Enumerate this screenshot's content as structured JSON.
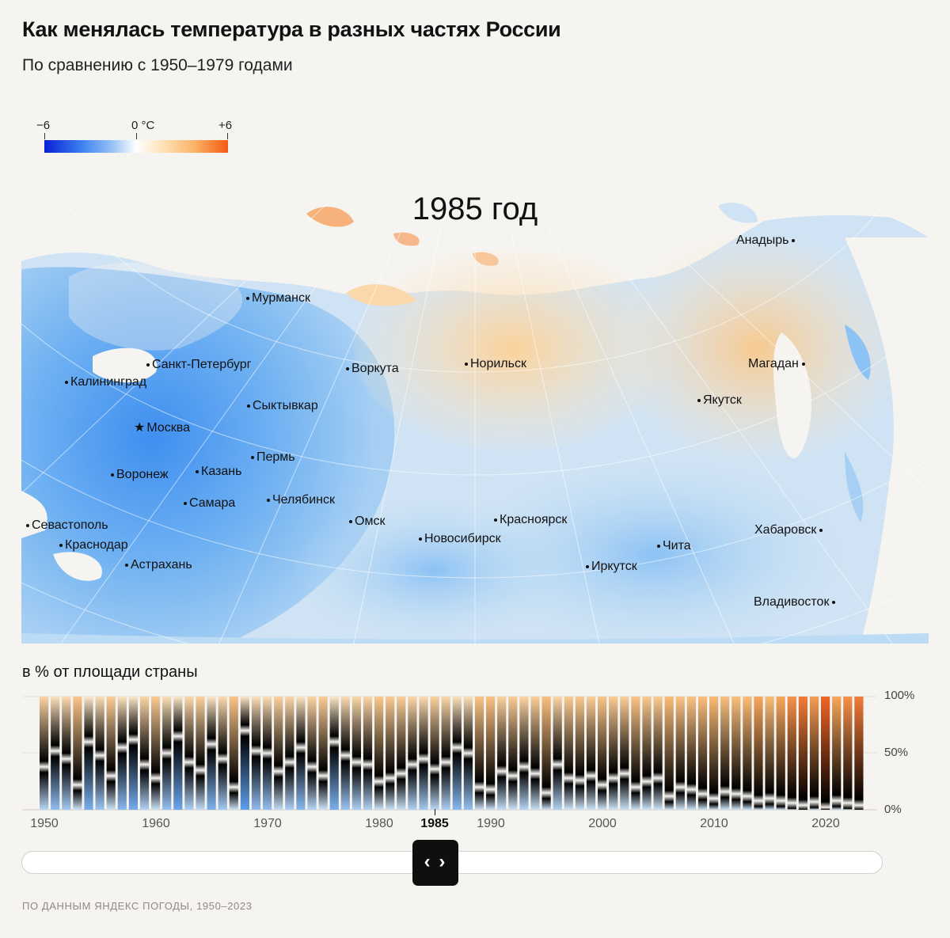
{
  "header": {
    "title": "Как менялась температура в разных частях России",
    "subtitle": "По сравнению с 1950–1979 годами"
  },
  "legend": {
    "min_label": "−6",
    "mid_label": "0 °C",
    "max_label": "+6",
    "colors": [
      "#0a1fd6",
      "#3b7ff0",
      "#9cc6f5",
      "#ffffff",
      "#fde2b4",
      "#fbb266",
      "#f25a12"
    ]
  },
  "map": {
    "year_label": "1985 год",
    "cities": {
      "anadyr": "Анадырь",
      "murmansk": "Мурманск",
      "st_petersburg": "Санкт-Петербург",
      "vorkuta": "Воркута",
      "norilsk": "Норильск",
      "magadan": "Магадан",
      "kaliningrad": "Калининград",
      "syktyvkar": "Сыктывкар",
      "yakutsk": "Якутск",
      "moscow": "Москва",
      "perm": "Пермь",
      "voronezh": "Воронеж",
      "kazan": "Казань",
      "samara": "Самара",
      "chelyabinsk": "Челябинск",
      "sevastopol": "Севастополь",
      "omsk": "Омск",
      "krasnoyarsk": "Красноярск",
      "khabarovsk": "Хабаровск",
      "krasnodar": "Краснодар",
      "novosibirsk": "Новосибирск",
      "chita": "Чита",
      "astrakhan": "Астрахань",
      "irkutsk": "Иркутск",
      "vladivostok": "Владивосток"
    }
  },
  "chart": {
    "section_label": "в % от площади страны",
    "y_labels": [
      "100%",
      "50%",
      "0%"
    ],
    "x_labels": [
      "1950",
      "1960",
      "1970",
      "1980",
      "1985",
      "1990",
      "2000",
      "2010",
      "2020"
    ],
    "selected_year": 1985
  },
  "chart_data": {
    "type": "bar",
    "description_axis": "в % от площади страны",
    "x_start": 1950,
    "x_end": 2023,
    "ylim": [
      0,
      100
    ],
    "warm_share": [
      62,
      48,
      55,
      78,
      40,
      52,
      70,
      45,
      38,
      60,
      72,
      50,
      35,
      58,
      65,
      42,
      55,
      80,
      30,
      48,
      50,
      66,
      58,
      45,
      62,
      70,
      40,
      52,
      58,
      60,
      75,
      72,
      68,
      60,
      55,
      64,
      58,
      45,
      50,
      80,
      82,
      66,
      70,
      62,
      68,
      85,
      60,
      72,
      74,
      70,
      78,
      72,
      68,
      80,
      75,
      72,
      88,
      80,
      82,
      86,
      90,
      84,
      86,
      88,
      92,
      90,
      92,
      94,
      96,
      93,
      98,
      92,
      94,
      96
    ]
  },
  "slider": {
    "handle_label": "‹ ›"
  },
  "footer": {
    "source": "ПО ДАННЫМ ЯНДЕКС ПОГОДЫ, 1950–2023"
  }
}
